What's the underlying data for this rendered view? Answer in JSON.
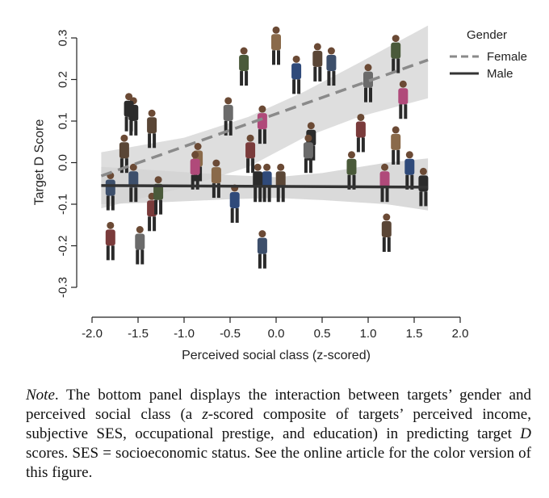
{
  "chart_data": {
    "type": "scatter",
    "xlabel": "Perceived social class (z-scored)",
    "ylabel": "Target D Score",
    "xlim": [
      -2.0,
      2.0
    ],
    "ylim": [
      -0.3,
      0.3
    ],
    "xticks": [
      "-2.0",
      "-1.5",
      "-1.0",
      "-0.5",
      "0.0",
      "0.5",
      "1.0",
      "1.5",
      "2.0"
    ],
    "xtick_values": [
      -2.0,
      -1.5,
      -1.0,
      -0.5,
      0.0,
      0.5,
      1.0,
      1.5,
      2.0
    ],
    "yticks": [
      "-0.3",
      "-0.2",
      "-0.1",
      "0.0",
      "0.1",
      "0.2",
      "0.3"
    ],
    "ytick_values": [
      -0.3,
      -0.2,
      -0.1,
      0.0,
      0.1,
      0.2,
      0.3
    ],
    "grid": false,
    "legend": {
      "title": "Gender",
      "position": "top-right",
      "entries": [
        {
          "label": "Female",
          "style": "dashed",
          "color": "#8a8a8a"
        },
        {
          "label": "Male",
          "style": "solid",
          "color": "#333333"
        }
      ]
    },
    "series": [
      {
        "name": "Female",
        "line": {
          "x": [
            -1.9,
            1.65
          ],
          "y": [
            -0.032,
            0.247
          ]
        },
        "ci_band": {
          "x": [
            -1.9,
            -1.0,
            -0.3,
            0.3,
            0.9,
            1.65
          ],
          "upper": [
            0.025,
            0.06,
            0.11,
            0.17,
            0.24,
            0.33
          ],
          "lower": [
            -0.11,
            -0.06,
            -0.01,
            0.06,
            0.11,
            0.155
          ]
        },
        "points": [
          {
            "x": -1.55,
            "y": 0.11
          },
          {
            "x": -1.35,
            "y": 0.08
          },
          {
            "x": -1.55,
            "y": -0.05
          },
          {
            "x": -1.35,
            "y": -0.12
          },
          {
            "x": -0.52,
            "y": 0.11
          },
          {
            "x": -0.35,
            "y": 0.23
          },
          {
            "x": -0.15,
            "y": 0.09
          },
          {
            "x": 0.0,
            "y": 0.28
          },
          {
            "x": 0.22,
            "y": 0.21
          },
          {
            "x": 0.38,
            "y": 0.05
          },
          {
            "x": 0.45,
            "y": 0.24
          },
          {
            "x": 0.6,
            "y": 0.23
          },
          {
            "x": 0.92,
            "y": 0.07
          },
          {
            "x": 1.0,
            "y": 0.19
          },
          {
            "x": 1.3,
            "y": 0.26
          },
          {
            "x": 1.38,
            "y": 0.15
          },
          {
            "x": -0.85,
            "y": 0.0
          },
          {
            "x": -0.1,
            "y": -0.05
          }
        ]
      },
      {
        "name": "Male",
        "line": {
          "x": [
            -1.9,
            1.65
          ],
          "y": [
            -0.055,
            -0.059
          ]
        },
        "ci_band": {
          "x": [
            -1.9,
            -1.2,
            -0.5,
            0.0,
            0.5,
            1.2,
            1.65
          ],
          "upper": [
            -0.01,
            -0.02,
            -0.03,
            -0.035,
            -0.025,
            0.0,
            0.01
          ],
          "lower": [
            -0.1,
            -0.095,
            -0.088,
            -0.085,
            -0.09,
            -0.1,
            -0.115
          ]
        },
        "points": [
          {
            "x": -1.6,
            "y": 0.12
          },
          {
            "x": -1.65,
            "y": 0.02
          },
          {
            "x": -1.8,
            "y": -0.07
          },
          {
            "x": -1.8,
            "y": -0.19
          },
          {
            "x": -1.48,
            "y": -0.2
          },
          {
            "x": -1.28,
            "y": -0.08
          },
          {
            "x": -0.88,
            "y": -0.02
          },
          {
            "x": -0.65,
            "y": -0.04
          },
          {
            "x": -0.45,
            "y": -0.1
          },
          {
            "x": -0.2,
            "y": -0.05
          },
          {
            "x": 0.05,
            "y": -0.05
          },
          {
            "x": -0.15,
            "y": -0.21
          },
          {
            "x": -0.28,
            "y": 0.02
          },
          {
            "x": 0.35,
            "y": 0.02
          },
          {
            "x": 0.82,
            "y": -0.02
          },
          {
            "x": 1.18,
            "y": -0.05
          },
          {
            "x": 1.3,
            "y": 0.04
          },
          {
            "x": 1.45,
            "y": -0.02
          },
          {
            "x": 1.6,
            "y": -0.06
          },
          {
            "x": 1.2,
            "y": -0.17
          }
        ]
      }
    ]
  },
  "note": {
    "label": "Note",
    "text_1": ". The bottom panel displays the interaction between targets’ gender and perceived social class (a ",
    "z_italic": "z",
    "text_2": "-scored composite of targets’ perceived income, subjective SES, occupational prestige, and education) in predicting target ",
    "d_italic": "D",
    "text_3": " scores. SES = socioeconomic status. See the online article for the color version of this figure."
  },
  "colors": {
    "female_line": "#8a8a8a",
    "male_line": "#333333",
    "ci_band": "#d3d3d3",
    "axis": "#222222"
  }
}
